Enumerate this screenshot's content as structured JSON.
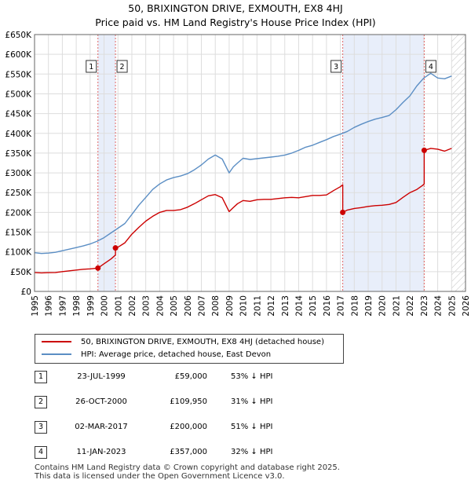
{
  "title": "50, BRIXINGTON DRIVE, EXMOUTH, EX8 4HJ",
  "subtitle": "Price paid vs. HM Land Registry's House Price Index (HPI)",
  "chart_data": {
    "type": "line",
    "title": "50, BRIXINGTON DRIVE, EXMOUTH, EX8 4HJ",
    "subtitle": "Price paid vs. HM Land Registry's House Price Index (HPI)",
    "xlabel": "",
    "ylabel": "",
    "xlim": [
      1995,
      2026
    ],
    "ylim": [
      0,
      650000
    ],
    "x_ticks": [
      "1995",
      "1996",
      "1997",
      "1998",
      "1999",
      "2000",
      "2001",
      "2002",
      "2003",
      "2004",
      "2005",
      "2006",
      "2007",
      "2008",
      "2009",
      "2010",
      "2011",
      "2012",
      "2013",
      "2014",
      "2015",
      "2016",
      "2017",
      "2018",
      "2019",
      "2020",
      "2021",
      "2022",
      "2023",
      "2024",
      "2025",
      "2026"
    ],
    "y_ticks": [
      {
        "value": 0,
        "label": "£0"
      },
      {
        "value": 50000,
        "label": "£50K"
      },
      {
        "value": 100000,
        "label": "£100K"
      },
      {
        "value": 150000,
        "label": "£150K"
      },
      {
        "value": 200000,
        "label": "£200K"
      },
      {
        "value": 250000,
        "label": "£250K"
      },
      {
        "value": 300000,
        "label": "£300K"
      },
      {
        "value": 350000,
        "label": "£350K"
      },
      {
        "value": 400000,
        "label": "£400K"
      },
      {
        "value": 450000,
        "label": "£450K"
      },
      {
        "value": 500000,
        "label": "£500K"
      },
      {
        "value": 550000,
        "label": "£550K"
      },
      {
        "value": 600000,
        "label": "£600K"
      },
      {
        "value": 650000,
        "label": "£650K"
      }
    ],
    "grid": true,
    "future_hatch_from": 2025,
    "shaded_periods": [
      [
        1999.56,
        2000.82
      ],
      [
        2017.17,
        2023.03
      ]
    ],
    "series": [
      {
        "name": "50, BRIXINGTON DRIVE, EXMOUTH, EX8 4HJ (detached house)",
        "color": "#cc0000",
        "x": [
          1995.0,
          1995.5,
          1996.0,
          1996.5,
          1997.0,
          1997.5,
          1998.0,
          1998.5,
          1999.0,
          1999.56,
          1999.56,
          2000.0,
          2000.5,
          2000.82,
          2000.82,
          2001.0,
          2001.5,
          2002.0,
          2002.5,
          2003.0,
          2003.5,
          2004.0,
          2004.5,
          2005.0,
          2005.5,
          2006.0,
          2006.5,
          2007.0,
          2007.5,
          2008.0,
          2008.5,
          2009.0,
          2009.3,
          2009.6,
          2010.0,
          2010.5,
          2011.0,
          2011.5,
          2012.0,
          2012.5,
          2013.0,
          2013.5,
          2014.0,
          2014.5,
          2015.0,
          2015.5,
          2016.0,
          2016.5,
          2017.0,
          2017.17,
          2017.17,
          2017.5,
          2018.0,
          2018.5,
          2019.0,
          2019.5,
          2020.0,
          2020.5,
          2021.0,
          2021.5,
          2022.0,
          2022.5,
          2022.9,
          2023.03,
          2023.03,
          2023.5,
          2024.0,
          2024.5,
          2025.0
        ],
        "values": [
          48000,
          47000,
          47500,
          48000,
          50000,
          52000,
          54000,
          56000,
          57000,
          59000,
          59000,
          70000,
          82000,
          92000,
          109950,
          112000,
          123000,
          145000,
          162000,
          178000,
          190000,
          200000,
          205000,
          205000,
          207000,
          213000,
          222000,
          232000,
          242000,
          245000,
          237000,
          202000,
          212000,
          222000,
          230000,
          228000,
          232000,
          233000,
          233000,
          235000,
          237000,
          238000,
          237000,
          240000,
          243000,
          243000,
          244000,
          255000,
          265000,
          270000,
          200000,
          206000,
          210000,
          212000,
          215000,
          217000,
          218000,
          220000,
          225000,
          238000,
          250000,
          258000,
          268000,
          272000,
          357000,
          362000,
          360000,
          355000,
          362000
        ]
      },
      {
        "name": "HPI: Average price, detached house, East Devon",
        "color": "#5b8ec4",
        "x": [
          1995.0,
          1995.5,
          1996.0,
          1996.5,
          1997.0,
          1997.5,
          1998.0,
          1998.5,
          1999.0,
          1999.5,
          2000.0,
          2000.5,
          2001.0,
          2001.5,
          2002.0,
          2002.5,
          2003.0,
          2003.5,
          2004.0,
          2004.5,
          2005.0,
          2005.5,
          2006.0,
          2006.5,
          2007.0,
          2007.5,
          2008.0,
          2008.5,
          2009.0,
          2009.3,
          2009.6,
          2010.0,
          2010.5,
          2011.0,
          2011.5,
          2012.0,
          2012.5,
          2013.0,
          2013.5,
          2014.0,
          2014.5,
          2015.0,
          2015.5,
          2016.0,
          2016.5,
          2017.0,
          2017.5,
          2018.0,
          2018.5,
          2019.0,
          2019.5,
          2020.0,
          2020.5,
          2021.0,
          2021.5,
          2022.0,
          2022.5,
          2023.0,
          2023.5,
          2024.0,
          2024.5,
          2025.0
        ],
        "values": [
          98000,
          96000,
          97000,
          99000,
          103000,
          107000,
          111000,
          115000,
          120000,
          127000,
          136000,
          148000,
          160000,
          172000,
          195000,
          218000,
          238000,
          258000,
          272000,
          282000,
          288000,
          292000,
          298000,
          308000,
          320000,
          335000,
          345000,
          335000,
          300000,
          315000,
          325000,
          337000,
          334000,
          336000,
          338000,
          340000,
          342000,
          345000,
          350000,
          357000,
          365000,
          370000,
          377000,
          384000,
          392000,
          398000,
          405000,
          415000,
          423000,
          430000,
          436000,
          440000,
          445000,
          460000,
          478000,
          495000,
          520000,
          540000,
          552000,
          540000,
          538000,
          545000
        ]
      }
    ],
    "transactions": [
      {
        "num": "1",
        "date": "23-JUL-1999",
        "x": 1999.56,
        "price": 59000,
        "price_label": "£59,000",
        "hpi": "53% ↓ HPI"
      },
      {
        "num": "2",
        "date": "26-OCT-2000",
        "x": 2000.82,
        "price": 109950,
        "price_label": "£109,950",
        "hpi": "31% ↓ HPI"
      },
      {
        "num": "3",
        "date": "02-MAR-2017",
        "x": 2017.17,
        "price": 200000,
        "price_label": "£200,000",
        "hpi": "51% ↓ HPI"
      },
      {
        "num": "4",
        "date": "11-JAN-2023",
        "x": 2023.03,
        "price": 357000,
        "price_label": "£357,000",
        "hpi": "32% ↓ HPI"
      }
    ],
    "legend": {
      "placement": "below",
      "entries": [
        {
          "label": "50, BRIXINGTON DRIVE, EXMOUTH, EX8 4HJ (detached house)",
          "color": "#cc0000"
        },
        {
          "label": "HPI: Average price, detached house, East Devon",
          "color": "#5b8ec4"
        }
      ]
    }
  },
  "footer": {
    "line1": "Contains HM Land Registry data © Crown copyright and database right 2025.",
    "line2": "This data is licensed under the Open Government Licence v3.0."
  }
}
